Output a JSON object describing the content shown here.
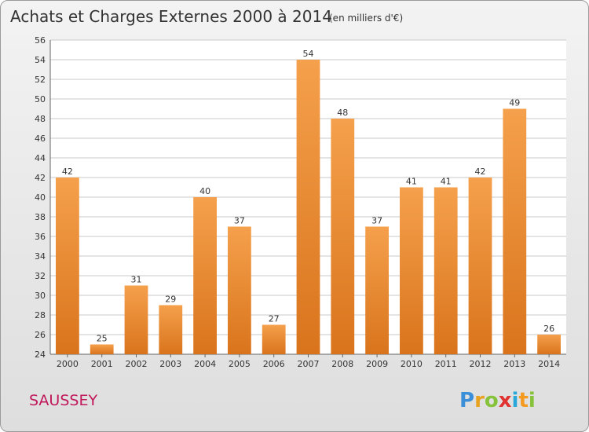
{
  "chart_data": {
    "type": "bar",
    "title": "Achats et Charges Externes 2000 à 2014",
    "subtitle": "(en milliers d'€)",
    "categories": [
      "2000",
      "2001",
      "2002",
      "2003",
      "2004",
      "2005",
      "2006",
      "2007",
      "2008",
      "2009",
      "2010",
      "2011",
      "2012",
      "2013",
      "2014"
    ],
    "values": [
      42,
      25,
      31,
      29,
      40,
      37,
      27,
      54,
      48,
      37,
      41,
      41,
      42,
      49,
      26
    ],
    "ylim": [
      24,
      56
    ],
    "yticks": [
      24,
      26,
      28,
      30,
      32,
      34,
      36,
      38,
      40,
      42,
      44,
      46,
      48,
      50,
      52,
      54,
      56
    ],
    "grid": true,
    "bar_color": "#f09a3e",
    "xlabel": "",
    "ylabel": ""
  },
  "location_label": "SAUSSEY",
  "brand": {
    "letters": [
      "P",
      "r",
      "o",
      "x",
      "i",
      "t",
      "i"
    ],
    "colors": [
      "#3a8fd8",
      "#e8a21f",
      "#86c23a",
      "#e0322f",
      "#2aa7d9",
      "#f39a1f",
      "#86c23a"
    ]
  },
  "colors": {
    "title": "#333333",
    "location": "#c0185a",
    "grid": "#c8c8c8"
  }
}
